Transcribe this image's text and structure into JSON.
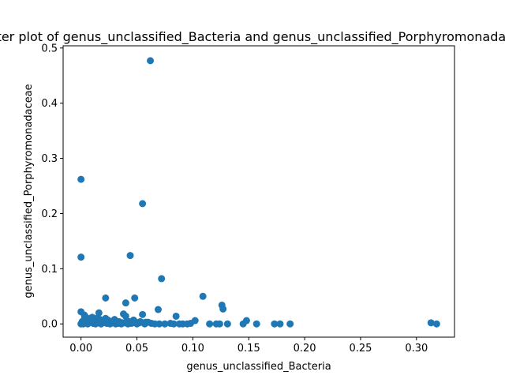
{
  "chart_data": {
    "type": "scatter",
    "title": "Scatter plot of genus_unclassified_Bacteria and genus_unclassified_Porphyromonadaceae",
    "xlabel": "genus_unclassified_Bacteria",
    "ylabel": "genus_unclassified_Porphyromonadaceae",
    "xlim": [
      -0.016,
      0.334
    ],
    "ylim": [
      -0.024,
      0.504
    ],
    "x_ticks": [
      0.0,
      0.05,
      0.1,
      0.15,
      0.2,
      0.25,
      0.3
    ],
    "x_tick_labels": [
      "0.00",
      "0.05",
      "0.10",
      "0.15",
      "0.20",
      "0.25",
      "0.30"
    ],
    "y_ticks": [
      0.0,
      0.1,
      0.2,
      0.3,
      0.4,
      0.5
    ],
    "y_tick_labels": [
      "0.0",
      "0.1",
      "0.2",
      "0.3",
      "0.4",
      "0.5"
    ],
    "grid": false,
    "marker_color": "#1f77b4",
    "points": [
      [
        0.062,
        0.477
      ],
      [
        0.0,
        0.262
      ],
      [
        0.055,
        0.218
      ],
      [
        0.044,
        0.124
      ],
      [
        0.0,
        0.121
      ],
      [
        0.072,
        0.082
      ],
      [
        0.109,
        0.05
      ],
      [
        0.022,
        0.047
      ],
      [
        0.048,
        0.047
      ],
      [
        0.04,
        0.038
      ],
      [
        0.126,
        0.034
      ],
      [
        0.127,
        0.027
      ],
      [
        0.069,
        0.026
      ],
      [
        0.0,
        0.022
      ],
      [
        0.016,
        0.02
      ],
      [
        0.038,
        0.018
      ],
      [
        0.055,
        0.017
      ],
      [
        0.003,
        0.016
      ],
      [
        0.085,
        0.014
      ],
      [
        0.04,
        0.014
      ],
      [
        0.01,
        0.012
      ],
      [
        0.022,
        0.01
      ],
      [
        0.03,
        0.008
      ],
      [
        0.047,
        0.007
      ],
      [
        0.102,
        0.006
      ],
      [
        0.148,
        0.006
      ],
      [
        0.005,
        0.006
      ],
      [
        0.014,
        0.005
      ],
      [
        0.025,
        0.004
      ],
      [
        0.035,
        0.003
      ],
      [
        0.06,
        0.003
      ],
      [
        0.001,
        0.004
      ],
      [
        0.002,
        0.0
      ],
      [
        0.004,
        0.002
      ],
      [
        0.006,
        0.0
      ],
      [
        0.008,
        0.003
      ],
      [
        0.011,
        0.001
      ],
      [
        0.013,
        0.0
      ],
      [
        0.015,
        0.002
      ],
      [
        0.018,
        0.0
      ],
      [
        0.02,
        0.003
      ],
      [
        0.023,
        0.001
      ],
      [
        0.026,
        0.0
      ],
      [
        0.028,
        0.002
      ],
      [
        0.031,
        0.0
      ],
      [
        0.033,
        0.001
      ],
      [
        0.036,
        0.0
      ],
      [
        0.039,
        0.002
      ],
      [
        0.042,
        0.0
      ],
      [
        0.045,
        0.001
      ],
      [
        0.05,
        0.0
      ],
      [
        0.052,
        0.002
      ],
      [
        0.057,
        0.0
      ],
      [
        0.063,
        0.001
      ],
      [
        0.066,
        0.0
      ],
      [
        0.07,
        0.0
      ],
      [
        0.075,
        0.0
      ],
      [
        0.08,
        0.001
      ],
      [
        0.083,
        0.0
      ],
      [
        0.088,
        0.0
      ],
      [
        0.091,
        0.0
      ],
      [
        0.095,
        0.0
      ],
      [
        0.098,
        0.001
      ],
      [
        0.115,
        0.0
      ],
      [
        0.121,
        0.0
      ],
      [
        0.124,
        0.0
      ],
      [
        0.131,
        0.0
      ],
      [
        0.145,
        0.0
      ],
      [
        0.157,
        0.0
      ],
      [
        0.173,
        0.0
      ],
      [
        0.178,
        0.0
      ],
      [
        0.187,
        0.0
      ],
      [
        0.313,
        0.002
      ],
      [
        0.318,
        0.0
      ],
      [
        0.0,
        0.0
      ],
      [
        0.001,
        0.001
      ],
      [
        0.007,
        0.007
      ],
      [
        0.009,
        0.009
      ],
      [
        0.012,
        0.006
      ],
      [
        0.017,
        0.008
      ],
      [
        0.019,
        0.005
      ],
      [
        0.021,
        0.006
      ],
      [
        0.024,
        0.007
      ],
      [
        0.027,
        0.004
      ],
      [
        0.029,
        0.005
      ],
      [
        0.032,
        0.003
      ],
      [
        0.034,
        0.004
      ],
      [
        0.037,
        0.002
      ],
      [
        0.041,
        0.003
      ],
      [
        0.043,
        0.004
      ],
      [
        0.046,
        0.002
      ],
      [
        0.049,
        0.003
      ],
      [
        0.053,
        0.004
      ],
      [
        0.056,
        0.002
      ],
      [
        0.058,
        0.003
      ],
      [
        0.003,
        0.009
      ],
      [
        0.005,
        0.011
      ],
      [
        0.01,
        0.004
      ],
      [
        0.014,
        0.01
      ],
      [
        0.016,
        0.006
      ]
    ]
  }
}
